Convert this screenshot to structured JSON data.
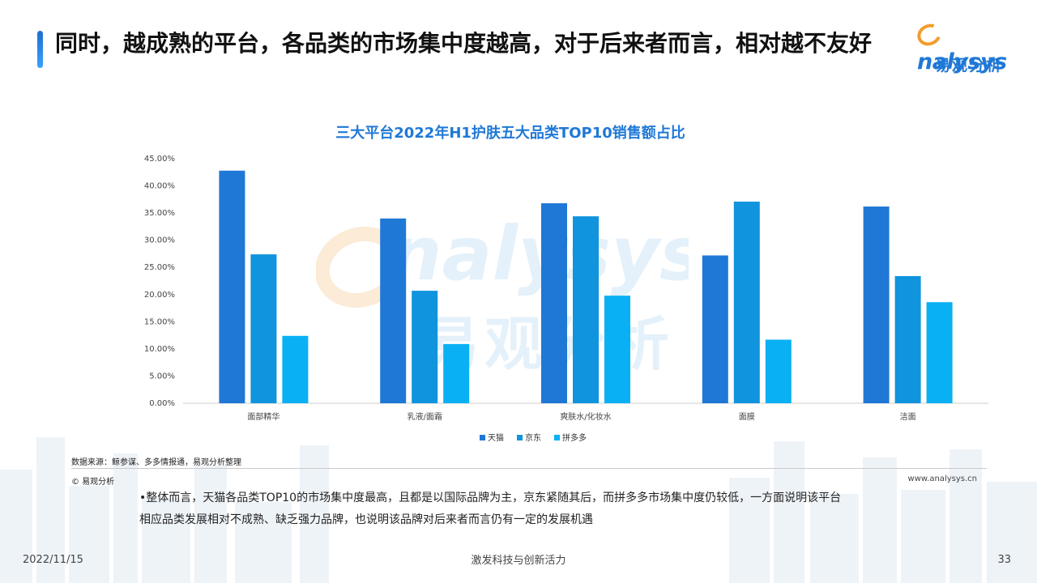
{
  "header": {
    "title": "同时，越成熟的平台，各品类的市场集中度越高，对于后来者而言，相对越不友好"
  },
  "logo": {
    "brand_en": "nalysys",
    "brand_cn": "易观分析"
  },
  "watermark": {
    "text_en": "nalysys",
    "text_cn": "易观分析"
  },
  "chart_data": {
    "type": "bar",
    "title": "三大平台2022年H1护肤五大品类TOP10销售额占比",
    "categories": [
      "面部精华",
      "乳液/面霜",
      "爽肤水/化妆水",
      "面膜",
      "洁面"
    ],
    "series": [
      {
        "name": "天猫",
        "color": "#1f78d6",
        "values": [
          42.8,
          34.0,
          36.8,
          27.2,
          36.2
        ]
      },
      {
        "name": "京东",
        "color": "#0f94dd",
        "values": [
          27.4,
          20.7,
          34.4,
          37.1,
          23.4
        ]
      },
      {
        "name": "拼多多",
        "color": "#0ab0f4",
        "values": [
          12.4,
          10.9,
          19.8,
          11.7,
          18.6
        ]
      }
    ],
    "y_ticks": [
      "0.00%",
      "5.00%",
      "10.00%",
      "15.00%",
      "20.00%",
      "25.00%",
      "30.00%",
      "35.00%",
      "40.00%",
      "45.00%"
    ],
    "ylim": [
      0,
      45
    ],
    "grid": false,
    "legend_position": "bottom"
  },
  "source": "数据来源：鲸参谋、多多情报通，易观分析整理",
  "copyright": "© 易观分析",
  "website": "www.analysys.cn",
  "summary": "•整体而言，天猫各品类TOP10的市场集中度最高，且都是以国际品牌为主，京东紧随其后，而拼多多市场集中度仍较低，一方面说明该平台相应品类发展相对不成熟、缺乏强力品牌，也说明该品牌对后来者而言仍有一定的发展机遇",
  "footer": {
    "date": "2022/11/15",
    "slogan": "激发科技与创新活力",
    "page": "33"
  }
}
